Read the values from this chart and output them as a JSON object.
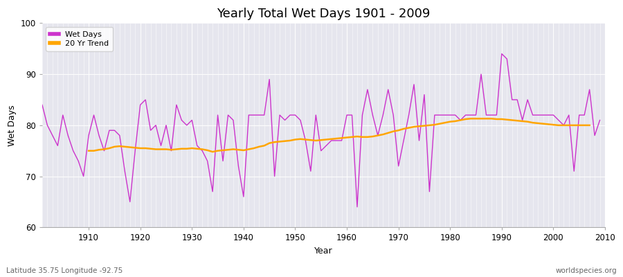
{
  "title": "Yearly Total Wet Days 1901 - 2009",
  "xlabel": "Year",
  "ylabel": "Wet Days",
  "lat_lon_label": "Latitude 35.75 Longitude -92.75",
  "watermark": "worldspecies.org",
  "ylim": [
    60,
    100
  ],
  "yticks": [
    60,
    70,
    80,
    90,
    100
  ],
  "fig_bg_color": "#ffffff",
  "plot_bg_color": "#e6e6ee",
  "wet_days_color": "#cc33cc",
  "trend_color": "#ffa500",
  "wet_days_label": "Wet Days",
  "trend_label": "20 Yr Trend",
  "years": [
    1901,
    1902,
    1903,
    1904,
    1905,
    1906,
    1907,
    1908,
    1909,
    1910,
    1911,
    1912,
    1913,
    1914,
    1915,
    1916,
    1917,
    1918,
    1919,
    1920,
    1921,
    1922,
    1923,
    1924,
    1925,
    1926,
    1927,
    1928,
    1929,
    1930,
    1931,
    1932,
    1933,
    1934,
    1935,
    1936,
    1937,
    1938,
    1939,
    1940,
    1941,
    1942,
    1943,
    1944,
    1945,
    1946,
    1947,
    1948,
    1949,
    1950,
    1951,
    1952,
    1953,
    1954,
    1955,
    1956,
    1957,
    1958,
    1959,
    1960,
    1961,
    1962,
    1963,
    1964,
    1965,
    1966,
    1967,
    1968,
    1969,
    1970,
    1971,
    1972,
    1973,
    1974,
    1975,
    1976,
    1977,
    1978,
    1979,
    1980,
    1981,
    1982,
    1983,
    1984,
    1985,
    1986,
    1987,
    1988,
    1989,
    1990,
    1991,
    1992,
    1993,
    1994,
    1995,
    1996,
    1997,
    1998,
    1999,
    2000,
    2001,
    2002,
    2003,
    2004,
    2005,
    2006,
    2007,
    2008,
    2009
  ],
  "wet_days": [
    84,
    80,
    78,
    76,
    82,
    78,
    75,
    73,
    70,
    78,
    82,
    78,
    75,
    79,
    79,
    78,
    71,
    65,
    75,
    84,
    85,
    79,
    80,
    76,
    80,
    75,
    84,
    81,
    80,
    81,
    76,
    75,
    73,
    67,
    82,
    73,
    82,
    81,
    72,
    66,
    82,
    82,
    82,
    82,
    89,
    70,
    82,
    81,
    82,
    82,
    81,
    77,
    71,
    82,
    75,
    76,
    77,
    77,
    77,
    82,
    82,
    64,
    82,
    87,
    82,
    78,
    82,
    87,
    82,
    72,
    77,
    82,
    88,
    77,
    86,
    67,
    82,
    82,
    82,
    82,
    82,
    81,
    82,
    82,
    82,
    90,
    82,
    82,
    82,
    94,
    93,
    85,
    85,
    81,
    85,
    82,
    82,
    82,
    82,
    82,
    81,
    80,
    82,
    71,
    82,
    82,
    87,
    78,
    81
  ],
  "trend": [
    null,
    null,
    null,
    null,
    null,
    null,
    null,
    null,
    null,
    75.0,
    75.0,
    75.2,
    75.3,
    75.5,
    75.8,
    75.9,
    75.8,
    75.7,
    75.6,
    75.5,
    75.5,
    75.4,
    75.3,
    75.3,
    75.3,
    75.2,
    75.3,
    75.4,
    75.4,
    75.5,
    75.4,
    75.3,
    75.1,
    74.8,
    75.0,
    75.1,
    75.2,
    75.3,
    75.2,
    75.1,
    75.3,
    75.5,
    75.8,
    76.0,
    76.5,
    76.7,
    76.8,
    76.9,
    77.0,
    77.2,
    77.3,
    77.2,
    77.1,
    77.0,
    77.1,
    77.2,
    77.3,
    77.4,
    77.5,
    77.6,
    77.7,
    77.8,
    77.7,
    77.7,
    77.8,
    78.0,
    78.2,
    78.5,
    78.8,
    79.0,
    79.3,
    79.5,
    79.7,
    79.8,
    79.9,
    80.0,
    80.1,
    80.3,
    80.5,
    80.7,
    80.8,
    81.0,
    81.2,
    81.3,
    81.3,
    81.3,
    81.3,
    81.3,
    81.2,
    81.2,
    81.1,
    81.0,
    80.9,
    80.8,
    80.7,
    80.5,
    80.4,
    80.3,
    80.2,
    80.1,
    80.0,
    80.0,
    80.0,
    80.0,
    80.0,
    80.0,
    80.0,
    null,
    null
  ]
}
